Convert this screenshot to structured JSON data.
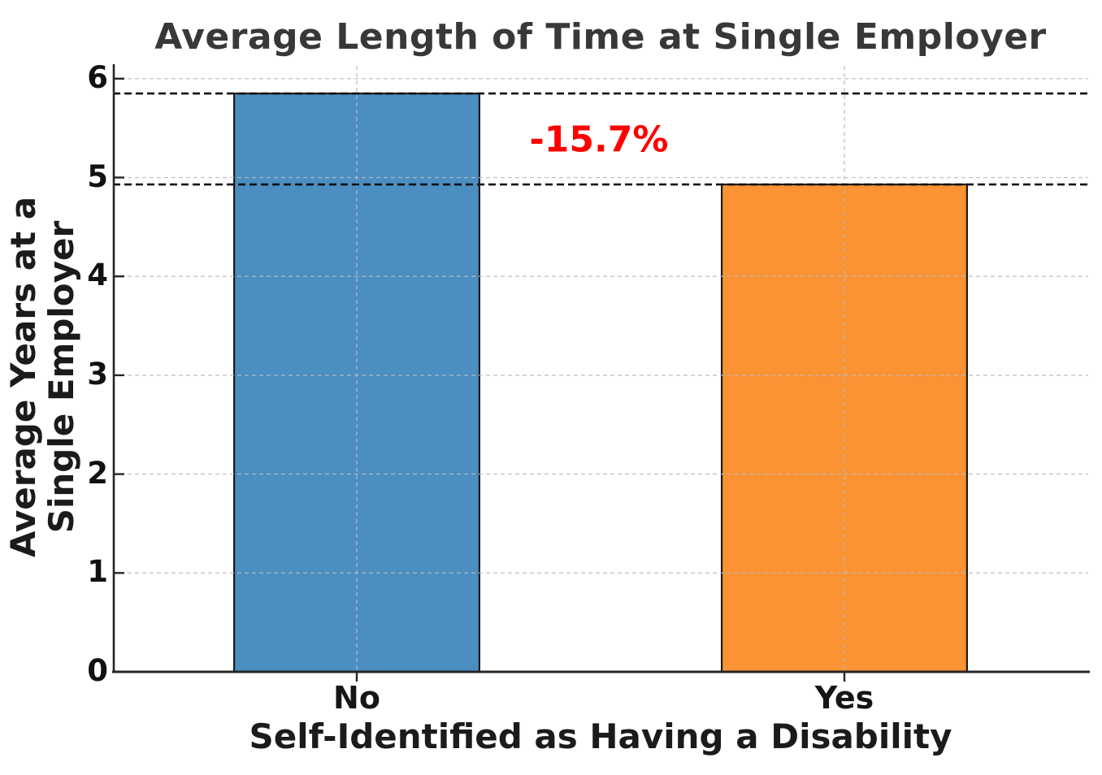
{
  "chart_data": {
    "type": "bar",
    "title": "Average Length of Time at Single Employer",
    "xlabel": "Self-Identified as Having a Disability",
    "ylabel": "Average Years at a Single Employer",
    "ylabel_lines": [
      "Average Years at a",
      "Single Employer"
    ],
    "categories": [
      "No",
      "Yes"
    ],
    "values": [
      5.85,
      4.93
    ],
    "bar_colors": [
      "#4A8EC2",
      "#FB9233"
    ],
    "bar_edge_color": "#1a1a1a",
    "ylim": [
      0,
      6.13
    ],
    "yticks": [
      0,
      1,
      2,
      3,
      4,
      5,
      6
    ],
    "annotation": {
      "text": "-15.7%",
      "color": "#ff0000"
    },
    "reference_lines": {
      "values": [
        5.85,
        4.93
      ],
      "style": "dashed",
      "color": "#111111"
    },
    "grid": {
      "horizontal": true,
      "vertical": true,
      "style": "dashed",
      "color": "#bbbbbb"
    },
    "legend": "none",
    "title_color": "#383838",
    "axis_color": "#262626"
  }
}
